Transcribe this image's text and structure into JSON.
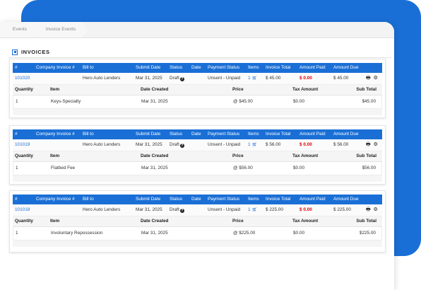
{
  "breadcrumb": [
    "Events",
    "Invoice Events"
  ],
  "section_title": "INVOICES",
  "columns": {
    "num": "#",
    "company_invoice": "Company Invoice #",
    "bill_to": "Bill to",
    "submit_date": "Submit Date",
    "status": "Status",
    "date": "Date",
    "payment_status": "Payment Status",
    "items": "Items",
    "invoice_total": "Invoice Total",
    "amount_paid": "Amount Paid",
    "amount_due": "Amount Due"
  },
  "line_columns": {
    "quantity": "Quantity",
    "item": "Item",
    "date_created": "Date Created",
    "price": "Price",
    "tax_amount": "Tax Amount",
    "sub_total": "Sub Total"
  },
  "invoices": [
    {
      "id": "101020",
      "bill_to": "Hero Auto Lenders",
      "submit_date": "Mar 31, 2025",
      "status": "Draft",
      "status_help": "?",
      "payment_status": "Unsent - Unpaid",
      "items": "1",
      "invoice_total": "$ 45.00",
      "amount_paid": "$ 0.00",
      "amount_due": "$ 45.00",
      "line": {
        "quantity": "1",
        "item": "Keys-Specialty",
        "date_created": "Mar 31, 2025",
        "price": "@ $45.00",
        "tax_amount": "$0.00",
        "sub_total": "$45.00"
      }
    },
    {
      "id": "101019",
      "bill_to": "Hero Auto Lenders",
      "submit_date": "Mar 31, 2025",
      "status": "Draft",
      "status_help": "?",
      "payment_status": "Unsent - Unpaid",
      "items": "1",
      "invoice_total": "$ 56.00",
      "amount_paid": "$ 0.00",
      "amount_due": "$ 56.00",
      "line": {
        "quantity": "1",
        "item": "Flatbed Fee",
        "date_created": "Mar 31, 2025",
        "price": "@ $56.00",
        "tax_amount": "$0.00",
        "sub_total": "$56.00"
      }
    },
    {
      "id": "101018",
      "bill_to": "Hero Auto Lenders",
      "submit_date": "Mar 31, 2025",
      "status": "Draft",
      "status_help": "?",
      "payment_status": "Unsent - Unpaid",
      "items": "1",
      "invoice_total": "$ 225.00",
      "amount_paid": "$ 0.00",
      "amount_due": "$ 225.00",
      "line": {
        "quantity": "1",
        "item": "Involuntary Repossession",
        "date_created": "Mar 31, 2025",
        "price": "@ $225.00",
        "tax_amount": "$0.00",
        "sub_total": "$225.00"
      }
    }
  ],
  "colors": {
    "accent": "#1a6fd6",
    "danger": "#e00000"
  },
  "icons": {
    "section": "square-icon",
    "cart": "cart-icon",
    "print": "printer-icon",
    "settings": "gear-icon",
    "help": "question-icon"
  }
}
